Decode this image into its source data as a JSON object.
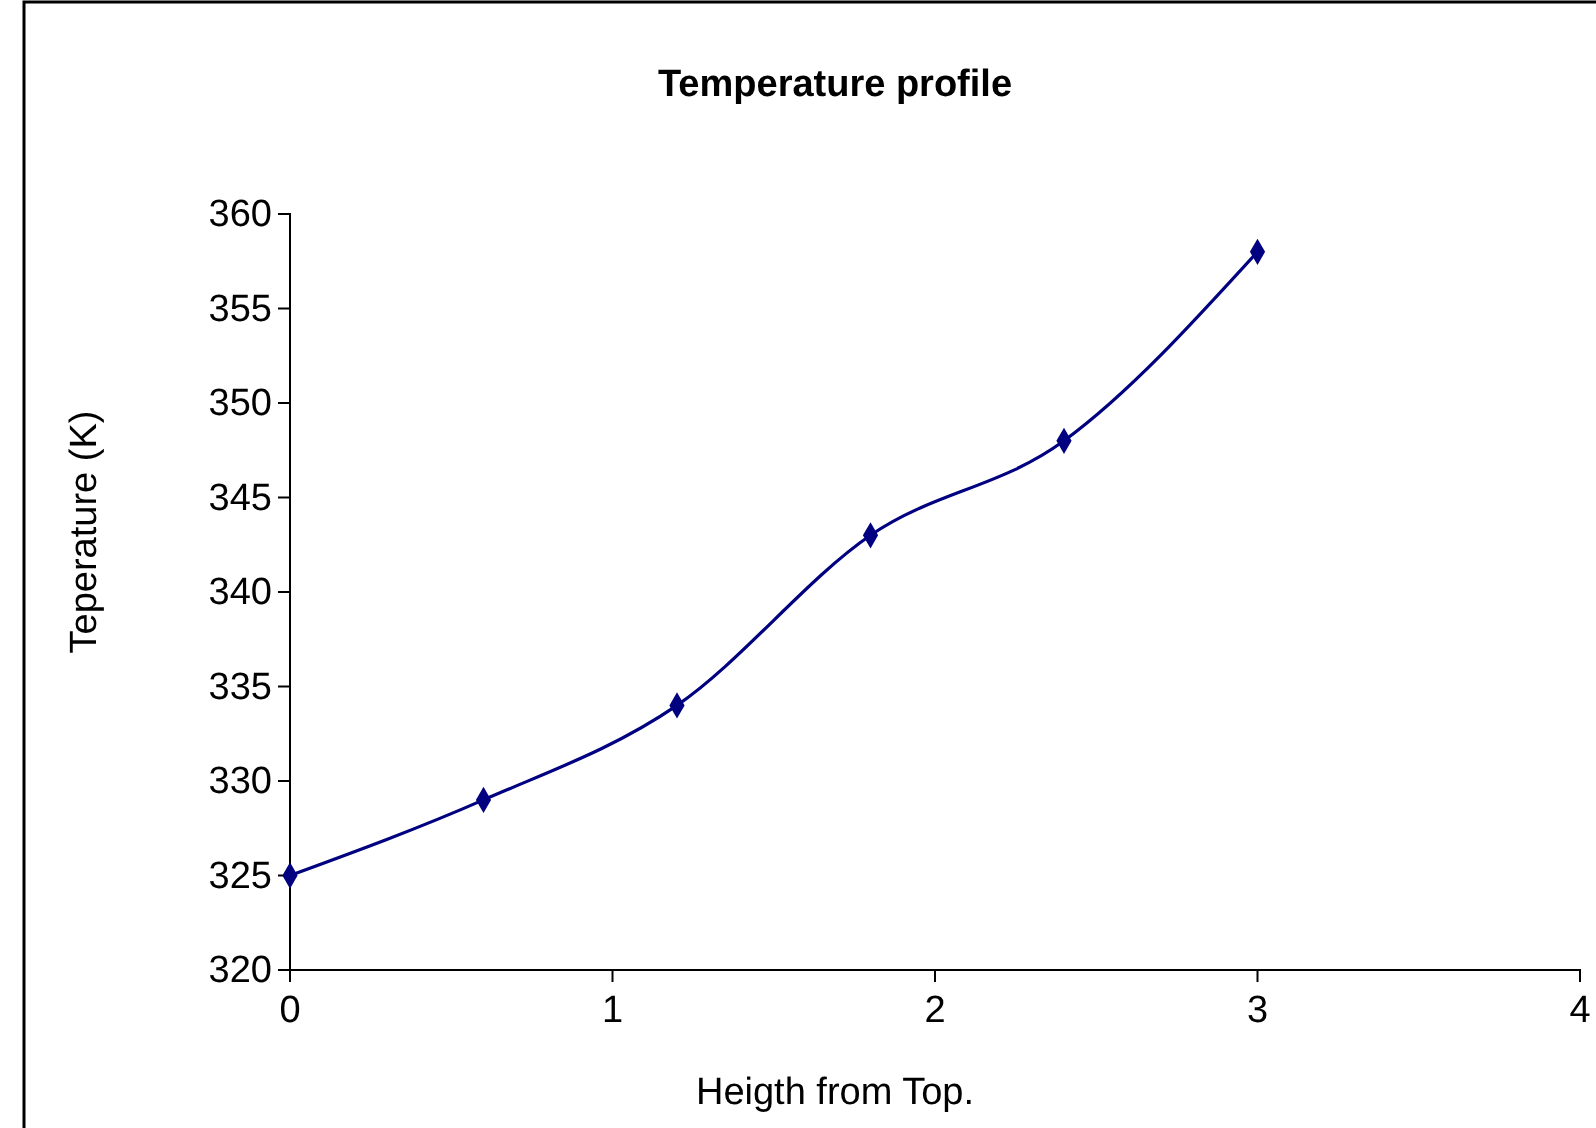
{
  "chart_data": {
    "type": "line",
    "title": "Temperature profile",
    "xlabel": "Heigth from Top.",
    "ylabel": "Teperature (K)",
    "x": [
      0,
      0.6,
      1.2,
      1.8,
      2.4,
      3
    ],
    "series": [
      {
        "color": "#000080",
        "values": [
          325,
          329,
          334,
          343,
          348,
          358
        ]
      }
    ],
    "xlim": [
      0,
      4
    ],
    "xticks": [
      0,
      1,
      2,
      3,
      4
    ],
    "ylim": [
      320,
      360
    ],
    "yticks": [
      320,
      325,
      330,
      335,
      340,
      345,
      350,
      355,
      360
    ],
    "marker": "diamond",
    "line_style": "solid"
  }
}
